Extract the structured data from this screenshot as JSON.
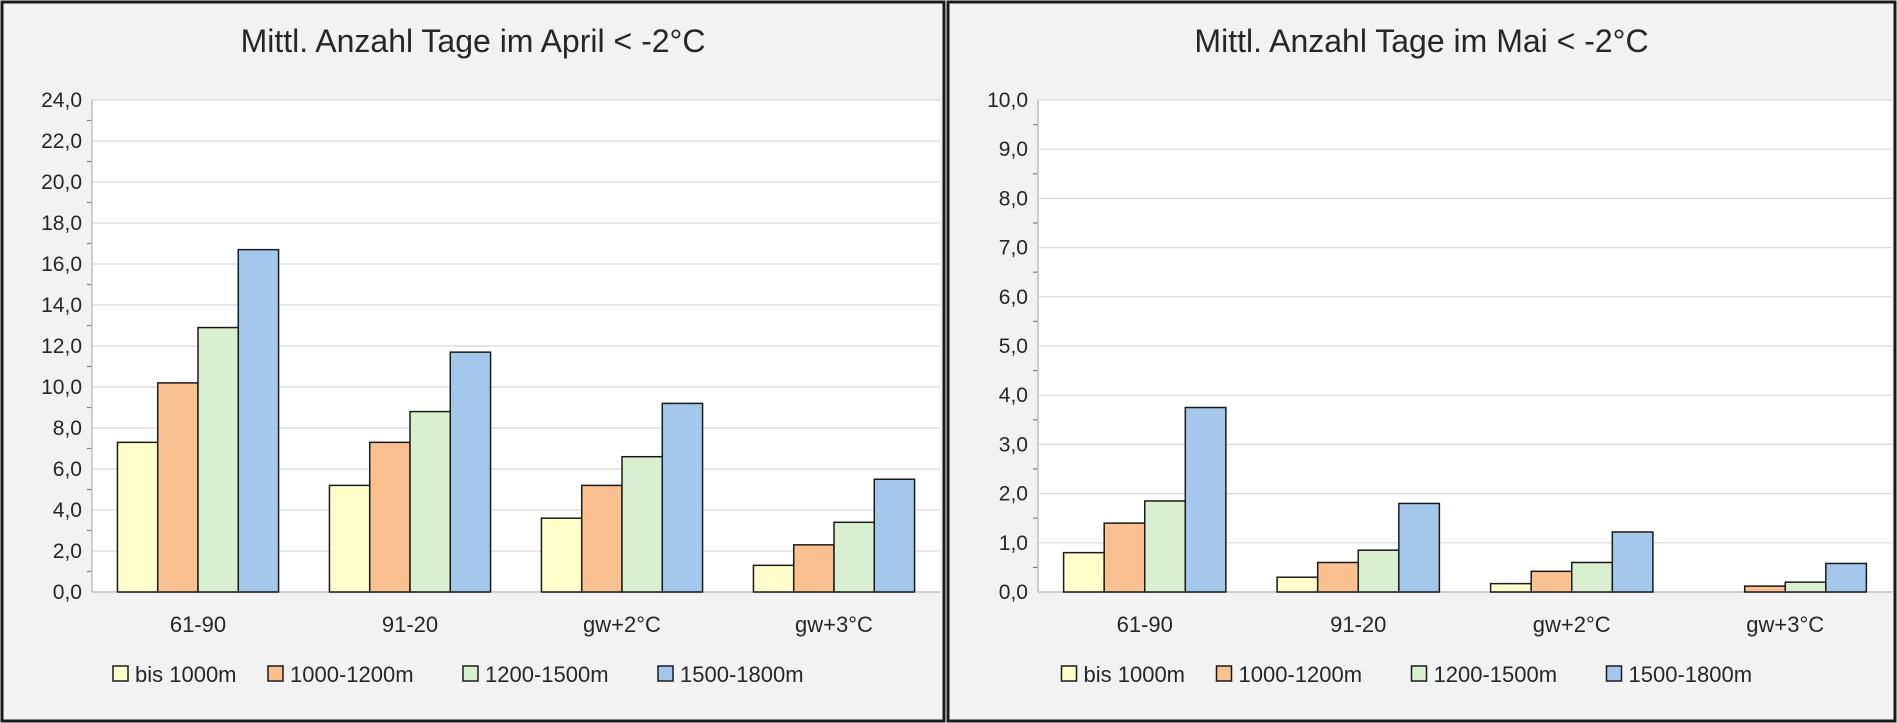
{
  "colors": {
    "panel_background": "#f2f2f2",
    "plot_background": "#ffffff",
    "border": "#1a1a1a",
    "gridline": "#d9d9d9",
    "text": "#262626"
  },
  "legend_position": "bottom",
  "chart_data": [
    {
      "type": "bar",
      "title": "Mittl. Anzahl Tage im April < -2°C",
      "xlabel": "",
      "ylabel": "",
      "categories": [
        "61-90",
        "91-20",
        "gw+2°C",
        "gw+3°C"
      ],
      "ylim": [
        0,
        24
      ],
      "ytick_step": 2,
      "ytick_labels": [
        "0,0",
        "2,0",
        "4,0",
        "6,0",
        "8,0",
        "10,0",
        "12,0",
        "14,0",
        "16,0",
        "18,0",
        "20,0",
        "22,0",
        "24,0"
      ],
      "grid": true,
      "legend": "bottom",
      "series": [
        {
          "name": "bis 1000m",
          "color": "#ffffcc",
          "values": [
            7.3,
            5.2,
            3.6,
            1.3
          ]
        },
        {
          "name": "1000-1200m",
          "color": "#fac090",
          "values": [
            10.2,
            7.3,
            5.2,
            2.3
          ]
        },
        {
          "name": "1200-1500m",
          "color": "#d8f0d0",
          "values": [
            12.9,
            8.8,
            6.6,
            3.4
          ]
        },
        {
          "name": "1500-1800m",
          "color": "#a4c8ec",
          "values": [
            16.7,
            11.7,
            9.2,
            5.5
          ]
        }
      ]
    },
    {
      "type": "bar",
      "title": "Mittl. Anzahl Tage im Mai < -2°C",
      "xlabel": "",
      "ylabel": "",
      "categories": [
        "61-90",
        "91-20",
        "gw+2°C",
        "gw+3°C"
      ],
      "ylim": [
        0,
        10
      ],
      "ytick_step": 1,
      "ytick_labels": [
        "0,0",
        "1,0",
        "2,0",
        "3,0",
        "4,0",
        "5,0",
        "6,0",
        "7,0",
        "8,0",
        "9,0",
        "10,0"
      ],
      "grid": true,
      "legend": "bottom",
      "series": [
        {
          "name": "bis 1000m",
          "color": "#ffffcc",
          "values": [
            0.8,
            0.3,
            0.17,
            0.0
          ]
        },
        {
          "name": "1000-1200m",
          "color": "#fac090",
          "values": [
            1.4,
            0.6,
            0.42,
            0.12
          ]
        },
        {
          "name": "1200-1500m",
          "color": "#d8f0d0",
          "values": [
            1.85,
            0.85,
            0.6,
            0.2
          ]
        },
        {
          "name": "1500-1800m",
          "color": "#a4c8ec",
          "values": [
            3.75,
            1.8,
            1.22,
            0.58
          ]
        }
      ]
    }
  ]
}
